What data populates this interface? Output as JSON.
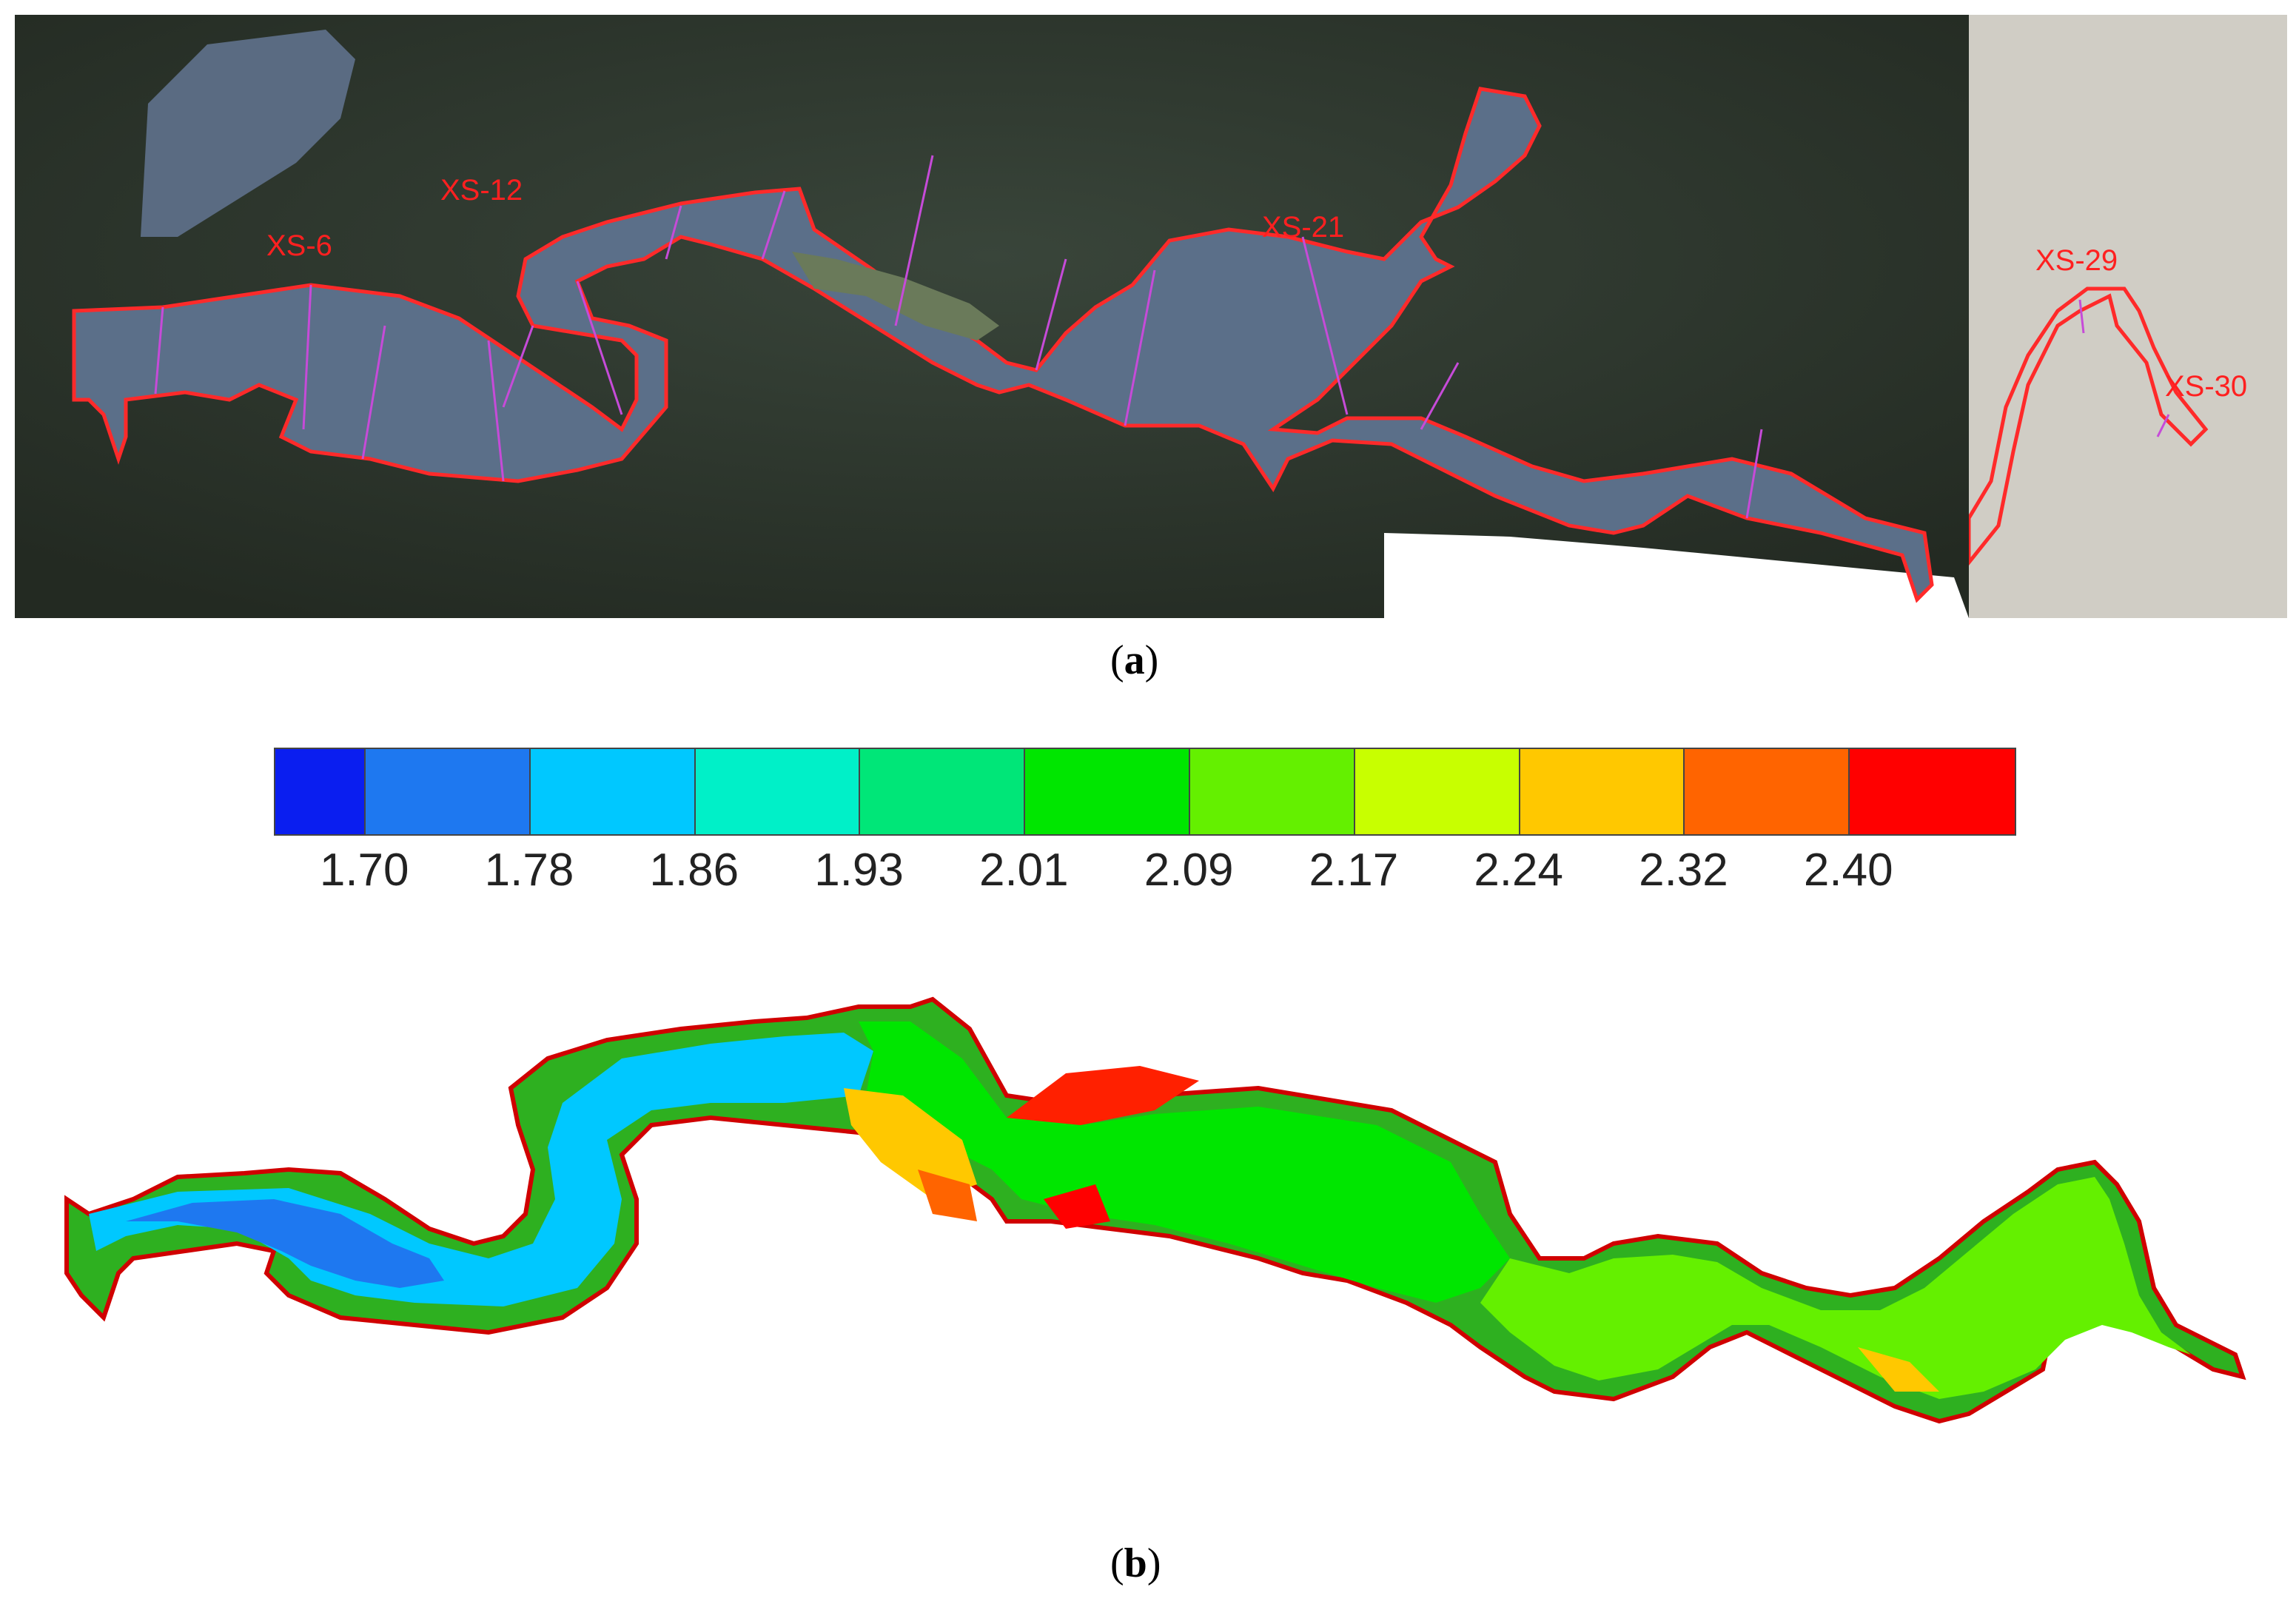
{
  "panel_a": {
    "caption_open": "(",
    "caption_letter": "a",
    "caption_close": ")",
    "cross_sections": [
      "XS-6",
      "XS-12",
      "XS-21",
      "XS-29",
      "XS-30"
    ],
    "colors": {
      "boundary": "#ff2a2a",
      "section_lines": "#c64bd8",
      "terrain": "#2e3a2c",
      "water": "#5b6f8a",
      "inset_bg": "#d0cdc5"
    }
  },
  "legend": {
    "colors": [
      "#0a1ef0",
      "#1e78f0",
      "#00c8ff",
      "#00f0c8",
      "#00e678",
      "#00e600",
      "#64f000",
      "#c8ff00",
      "#ffc800",
      "#ff6400",
      "#ff0000"
    ],
    "tick_labels": [
      "1.70",
      "1.78",
      "1.86",
      "1.93",
      "2.01",
      "2.09",
      "2.17",
      "2.24",
      "2.32",
      "2.40"
    ]
  },
  "panel_b": {
    "caption_open": "(",
    "caption_letter": "b",
    "caption_close": ")"
  }
}
